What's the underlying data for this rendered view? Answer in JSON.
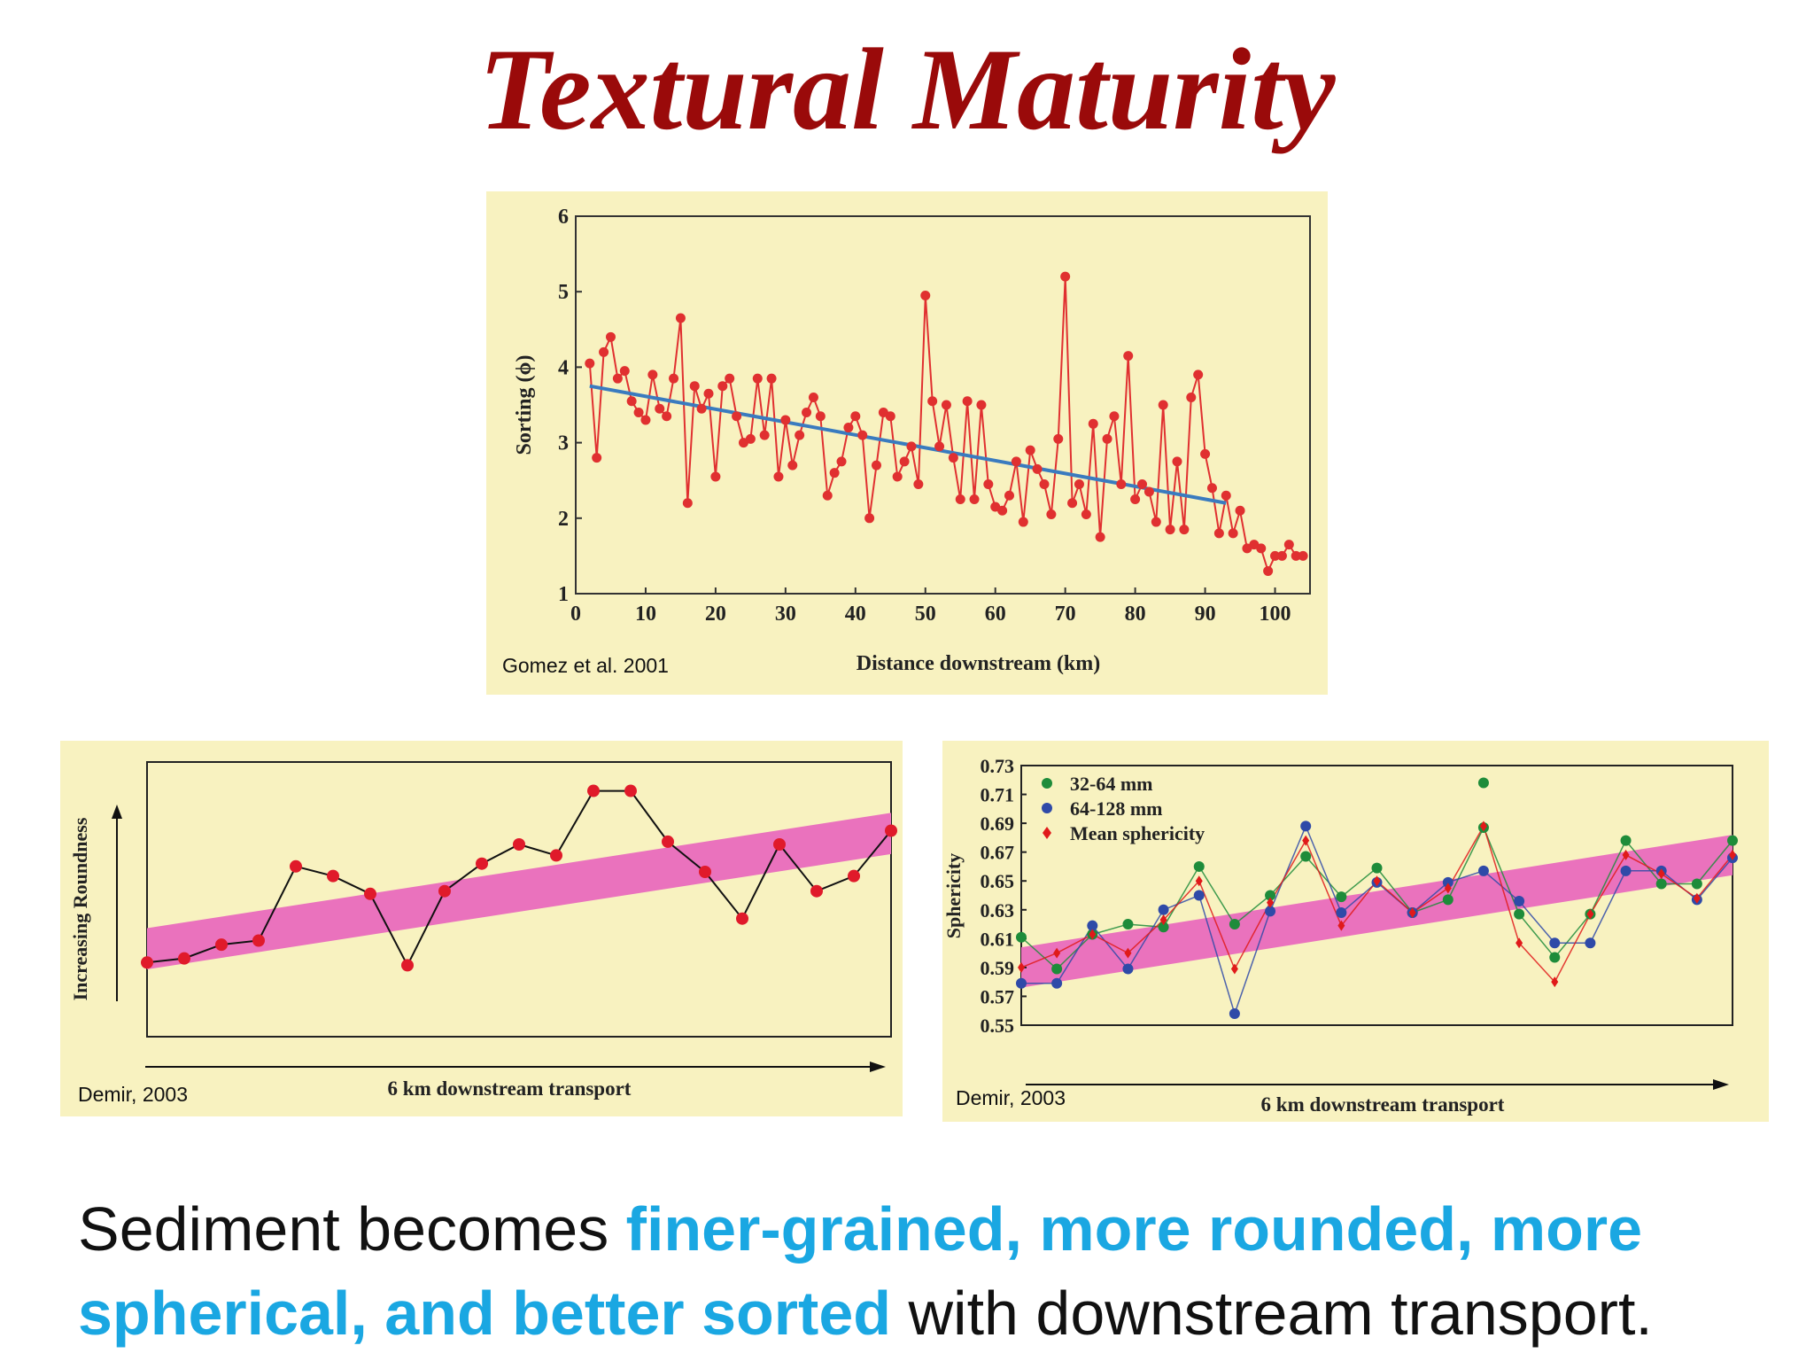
{
  "title": "Textural Maturity",
  "figures": {
    "top": {
      "credit": "Gomez et al. 2001"
    },
    "bottom_left": {
      "credit": "Demir, 2003"
    },
    "bottom_right": {
      "credit": "Demir, 2003"
    }
  },
  "caption": {
    "part1": "Sediment becomes ",
    "highlight": "finer-grained, more rounded, more spherical, and better sorted",
    "part2": " with downstream transport."
  },
  "colors": {
    "title": "#9a0a0a",
    "highlight": "#1aa7e2",
    "panel_bg": "#f8f2c0",
    "band": "#ea72bd"
  },
  "chart_data": [
    {
      "type": "line",
      "title": "",
      "xlabel": "Distance downstream (km)",
      "ylabel": "Sorting (ϕ)",
      "xlim": [
        0,
        105
      ],
      "ylim": [
        1,
        6
      ],
      "xticks": [
        0,
        10,
        20,
        30,
        40,
        50,
        60,
        70,
        80,
        90,
        100
      ],
      "yticks": [
        1,
        2,
        3,
        4,
        5,
        6
      ],
      "series": [
        {
          "name": "Sorting",
          "color": "#e03030",
          "x": [
            2,
            3,
            4,
            5,
            6,
            7,
            8,
            9,
            10,
            11,
            12,
            13,
            14,
            15,
            16,
            17,
            18,
            19,
            20,
            21,
            22,
            23,
            24,
            25,
            26,
            27,
            28,
            29,
            30,
            31,
            32,
            33,
            34,
            35,
            36,
            37,
            38,
            39,
            40,
            41,
            42,
            43,
            44,
            45,
            46,
            47,
            48,
            49,
            50,
            51,
            52,
            53,
            54,
            55,
            56,
            57,
            58,
            59,
            60,
            61,
            62,
            63,
            64,
            65,
            66,
            67,
            68,
            69,
            70,
            71,
            72,
            73,
            74,
            75,
            76,
            77,
            78,
            79,
            80,
            81,
            82,
            83,
            84,
            85,
            86,
            87,
            88,
            89,
            90,
            91,
            92,
            93,
            94,
            95,
            96,
            97,
            98,
            99,
            100,
            101,
            102,
            103,
            104
          ],
          "y": [
            4.05,
            2.8,
            4.2,
            4.4,
            3.85,
            3.95,
            3.55,
            3.4,
            3.3,
            3.9,
            3.45,
            3.35,
            3.85,
            4.65,
            2.2,
            3.75,
            3.45,
            3.65,
            2.55,
            3.75,
            3.85,
            3.35,
            3.0,
            3.05,
            3.85,
            3.1,
            3.85,
            2.55,
            3.3,
            2.7,
            3.1,
            3.4,
            3.6,
            3.35,
            2.3,
            2.6,
            2.75,
            3.2,
            3.35,
            3.1,
            2.0,
            2.7,
            3.4,
            3.35,
            2.55,
            2.75,
            2.95,
            2.45,
            4.95,
            3.55,
            2.95,
            3.5,
            2.8,
            2.25,
            3.55,
            2.25,
            3.5,
            2.45,
            2.15,
            2.1,
            2.3,
            2.75,
            1.95,
            2.9,
            2.65,
            2.45,
            2.05,
            3.05,
            5.2,
            2.2,
            2.45,
            2.05,
            3.25,
            1.75,
            3.05,
            3.35,
            2.45,
            4.15,
            2.25,
            2.45,
            2.35,
            1.95,
            3.5,
            1.85,
            2.75,
            1.85,
            3.6,
            3.9,
            2.85,
            2.4,
            1.8,
            2.3,
            1.8,
            2.1,
            1.6,
            1.65,
            1.6,
            1.3,
            1.5,
            1.5,
            1.65,
            1.5,
            1.5
          ]
        }
      ],
      "trend": {
        "x": [
          2,
          93
        ],
        "y": [
          3.75,
          2.2
        ],
        "color": "#3a7bbf"
      }
    },
    {
      "type": "line",
      "title": "",
      "xlabel": "6 km downstream transport",
      "ylabel": "Increasing Roundness",
      "xlim": [
        0,
        20
      ],
      "ylim": [
        0,
        10
      ],
      "series": [
        {
          "name": "Roundness",
          "color": "#e01a2a",
          "x": [
            0,
            1,
            2,
            3,
            4,
            5,
            6,
            7,
            8,
            9,
            10,
            11,
            12,
            13,
            14,
            15,
            16,
            17,
            18,
            19,
            20
          ],
          "y": [
            2.7,
            2.85,
            3.35,
            3.5,
            6.2,
            5.85,
            5.2,
            2.6,
            5.3,
            6.3,
            7.0,
            6.6,
            8.95,
            8.95,
            7.1,
            6.0,
            4.3,
            7.0,
            5.3,
            5.85,
            7.5
          ]
        }
      ],
      "band": {
        "x": [
          0,
          20
        ],
        "y_center": [
          3.2,
          7.4
        ],
        "color": "#ea72bd"
      }
    },
    {
      "type": "scatter",
      "title": "",
      "xlabel": "6 km downstream transport",
      "ylabel": "Sphericity",
      "xlim": [
        0,
        20
      ],
      "ylim": [
        0.55,
        0.73
      ],
      "yticks": [
        0.55,
        0.57,
        0.59,
        0.61,
        0.63,
        0.65,
        0.67,
        0.69,
        0.71,
        0.73
      ],
      "ytick_labels": [
        "0.55",
        "0.57",
        "0.59",
        "0.61",
        "0.63",
        "0.65",
        "0.67",
        "0.69",
        "0.71",
        "0.73"
      ],
      "legend": "top-left",
      "band": {
        "x": [
          0,
          20
        ],
        "y_center": [
          0.59,
          0.668
        ],
        "color": "#ea72bd"
      },
      "series": [
        {
          "name": "32-64 mm",
          "color": "#1e8c3a",
          "marker": "circle",
          "x": [
            0,
            1,
            2,
            3,
            4,
            5,
            6,
            7,
            8,
            9,
            10,
            11,
            12,
            13,
            14,
            15,
            16,
            17,
            18,
            19,
            20
          ],
          "y": [
            0.611,
            0.589,
            0.613,
            0.62,
            0.618,
            0.66,
            0.62,
            0.64,
            0.667,
            0.639,
            0.659,
            0.628,
            0.637,
            0.687,
            0.627,
            0.597,
            0.627,
            0.678,
            0.648,
            0.648,
            0.678
          ]
        },
        {
          "name": "64-128 mm",
          "color": "#2f4aa8",
          "marker": "circle",
          "x": [
            0,
            1,
            2,
            3,
            4,
            5,
            6,
            7,
            8,
            9,
            10,
            11,
            12,
            13,
            14,
            15,
            16,
            17,
            18,
            19,
            20
          ],
          "y": [
            0.579,
            0.579,
            0.619,
            0.589,
            0.63,
            0.64,
            0.558,
            0.629,
            0.688,
            0.628,
            0.649,
            0.628,
            0.649,
            0.657,
            0.636,
            0.607,
            0.607,
            0.657,
            0.657,
            0.637,
            0.666
          ]
        },
        {
          "name": "Mean sphericity",
          "color": "#e01a1a",
          "marker": "diamond",
          "x": [
            0,
            1,
            2,
            3,
            4,
            5,
            6,
            7,
            8,
            9,
            10,
            11,
            12,
            13,
            14,
            15,
            16,
            17,
            18,
            19,
            20
          ],
          "y": [
            0.59,
            0.6,
            0.613,
            0.6,
            0.623,
            0.65,
            0.589,
            0.635,
            0.678,
            0.619,
            0.65,
            0.628,
            0.645,
            0.688,
            0.607,
            0.58,
            0.627,
            0.668,
            0.655,
            0.638,
            0.668
          ]
        }
      ],
      "outliers": [
        {
          "x": 13,
          "y": 0.718,
          "series": "32-64 mm"
        }
      ]
    }
  ]
}
